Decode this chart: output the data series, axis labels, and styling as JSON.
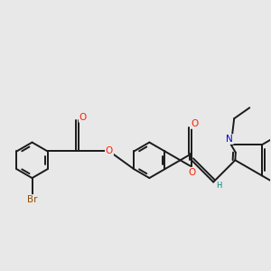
{
  "bg": "#e8e8e8",
  "bond_color": "#1a1a1a",
  "lw": 1.4,
  "dbo": 0.08,
  "atom_colors": {
    "O": "#ff2200",
    "N": "#0000cc",
    "Br": "#964B00",
    "H": "#008888"
  },
  "fs": 7.5,
  "figsize": [
    3.0,
    3.0
  ],
  "dpi": 100
}
